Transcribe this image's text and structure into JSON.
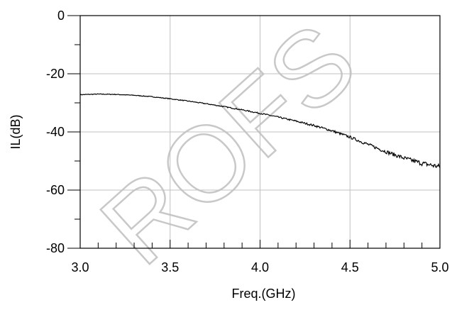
{
  "chart_data": {
    "type": "line",
    "xlabel": "Freq.(GHz)",
    "ylabel": "IL(dB)",
    "xlim": [
      3.0,
      5.0
    ],
    "ylim": [
      -80,
      0
    ],
    "x_ticks": [
      3.0,
      3.5,
      4.0,
      4.5,
      5.0
    ],
    "x_tick_labels": [
      "3.0",
      "3.5",
      "4.0",
      "4.5",
      "5.0"
    ],
    "y_ticks": [
      0,
      -20,
      -40,
      -60,
      -80
    ],
    "y_tick_labels": [
      "0",
      "-20",
      "-40",
      "-60",
      "-80"
    ],
    "grid": true,
    "watermark": "ROFS",
    "series": [
      {
        "x": [
          3.0,
          3.1,
          3.2,
          3.3,
          3.4,
          3.5,
          3.6,
          3.7,
          3.8,
          3.9,
          4.0,
          4.1,
          4.2,
          4.3,
          4.4,
          4.5,
          4.6,
          4.7,
          4.8,
          4.9,
          5.0
        ],
        "y": [
          -27.2,
          -27.0,
          -27.1,
          -27.4,
          -27.9,
          -28.6,
          -29.4,
          -30.3,
          -31.3,
          -32.4,
          -33.6,
          -34.9,
          -36.3,
          -37.8,
          -39.6,
          -41.8,
          -44.3,
          -46.8,
          -49.0,
          -50.8,
          -52.0
        ]
      }
    ]
  },
  "colors": {
    "line": "#000000",
    "grid": "#c0c0c0",
    "watermark": "#c8c8c8"
  }
}
